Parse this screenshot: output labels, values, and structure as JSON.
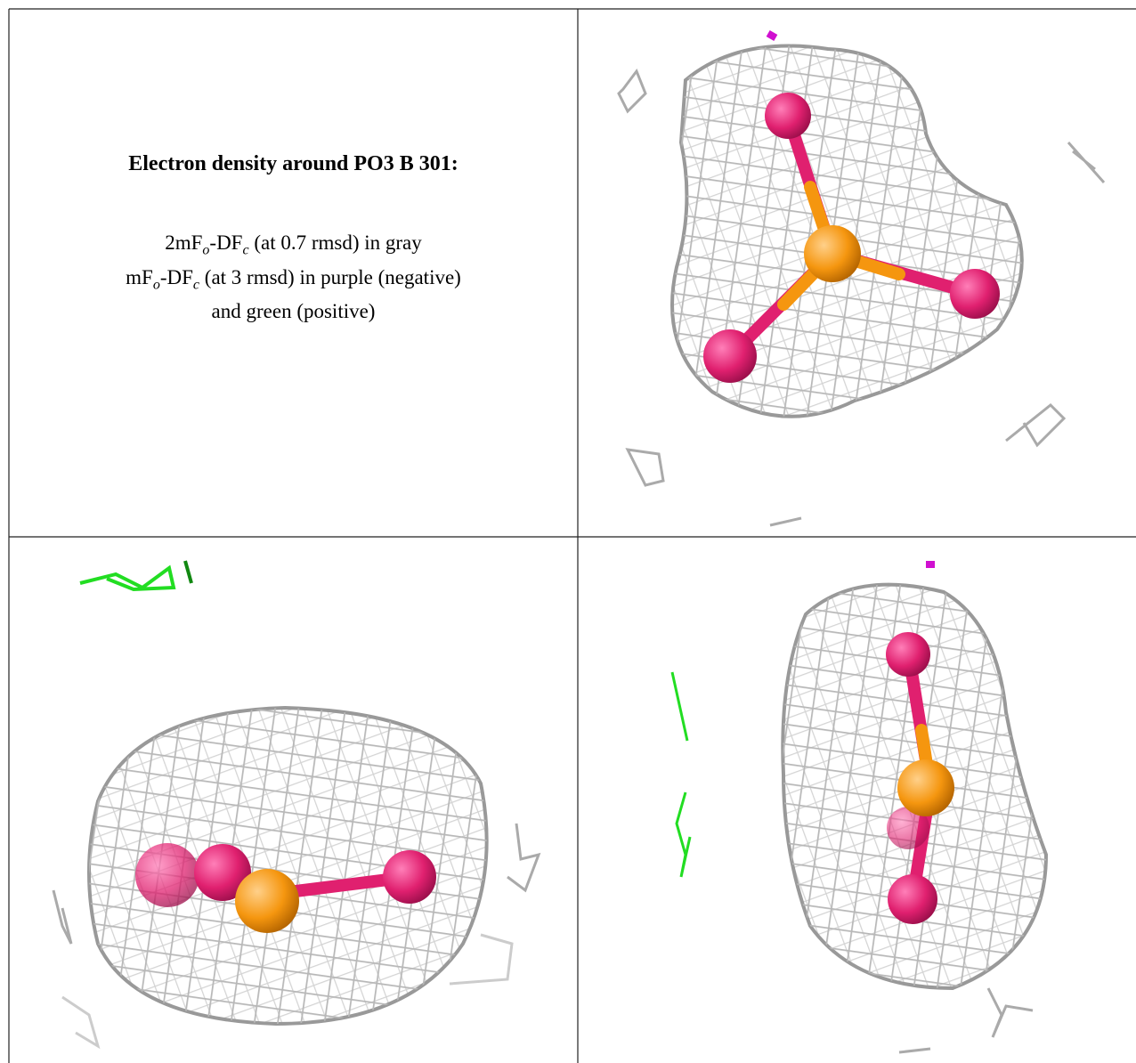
{
  "figure": {
    "title": "Electron density around PO3 B 301:",
    "lines": [
      [
        "2mF",
        "o",
        "-DF",
        "c",
        " (at 0.7 rmsd) in gray"
      ],
      [
        "mF",
        "o",
        "-DF",
        "c",
        " (at 3 rmsd) in purple (negative)"
      ],
      [
        "and green (positive)"
      ]
    ]
  }
}
